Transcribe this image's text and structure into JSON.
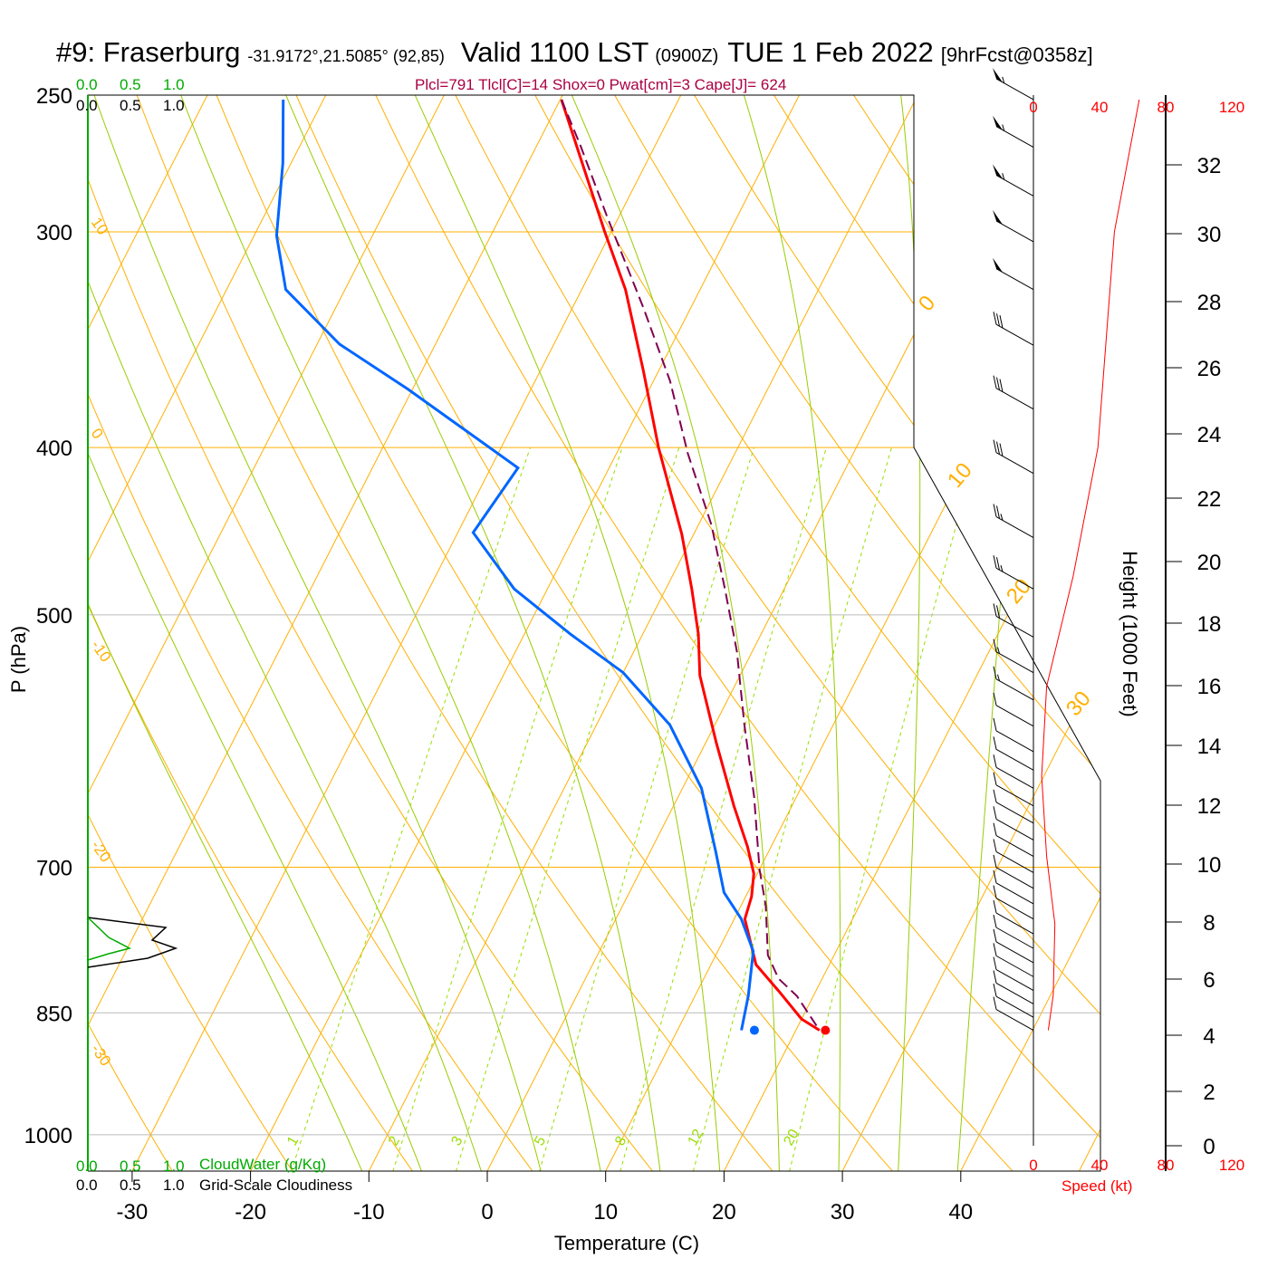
{
  "chart_data": {
    "type": "line",
    "subtype": "skew-t log-p sounding",
    "title": {
      "station": "#9: Fraserburg",
      "coords": "-31.9172°,21.5085° (92,85)",
      "valid": "Valid 1100 LST",
      "utc": "(0900Z)",
      "date": "TUE 1 Feb 2022",
      "forecast": "[9hrFcst@0358z]"
    },
    "indices": "Plcl=791 Tlcl[C]=14 Shox=0 Pwat[cm]=3 Cape[J]= 624",
    "xlabel": "Temperature (C)",
    "ylabel": "P (hPa)",
    "y2label": "Height (1000 Feet)",
    "speed_label": "Speed (kt)",
    "x_ticks": [
      -30,
      -20,
      -10,
      0,
      10,
      20,
      30,
      40
    ],
    "p_ticks": [
      250,
      300,
      400,
      500,
      700,
      850,
      1000
    ],
    "height_ticks": [
      0,
      2,
      4,
      6,
      8,
      10,
      12,
      14,
      16,
      18,
      20,
      22,
      24,
      26,
      28,
      30,
      32
    ],
    "speed_ticks": [
      0,
      40,
      80,
      120
    ],
    "cloud_scale": {
      "water_ticks": [
        "0.0",
        "0.5",
        "1.0"
      ],
      "water_label": "CloudWater (g/Kg)",
      "cover_ticks": [
        "0.0",
        "0.5",
        "1.0"
      ],
      "cover_label": "Grid-Scale Cloudiness"
    },
    "isotherm_labels": [
      0,
      10,
      20,
      30
    ],
    "dry_adiabat_labels": [
      10,
      0,
      -10,
      -20,
      -30
    ],
    "mixing_ratio_labels": [
      1,
      2,
      3,
      5,
      8,
      12,
      20
    ],
    "series": [
      {
        "name": "Temperature",
        "color": "#ff0000",
        "p": [
          251.5,
          299.7,
          324,
          361,
          400,
          449,
          483,
          513,
          542,
          593,
          645,
          681,
          706,
          728,
          750,
          797,
          826,
          857,
          870
        ],
        "t": [
          -39.9,
          -30.6,
          -26.3,
          -21.3,
          -16.7,
          -11.0,
          -7.8,
          -5.3,
          -3.4,
          0.9,
          5.1,
          8.0,
          9.7,
          10.5,
          10.9,
          13.8,
          16.9,
          20.0,
          22.0
        ]
      },
      {
        "name": "Dewpoint",
        "color": "#0066ff",
        "p": [
          251.5,
          273.7,
          301.5,
          324,
          348.5,
          370,
          411,
          448,
          483,
          513,
          540,
          579,
          630,
          685,
          724,
          750,
          783,
          831,
          870
        ],
        "t": [
          -63.4,
          -60.7,
          -58.1,
          -55.0,
          -48.1,
          -40.4,
          -27.7,
          -28.7,
          -22.8,
          -16.1,
          -10.0,
          -3.8,
          1.6,
          5.5,
          8.0,
          10.6,
          13.0,
          14.5,
          15.4
        ]
      },
      {
        "name": "Parcel",
        "color": "#800050",
        "dashed": true,
        "p": [
          251.5,
          267,
          294,
          332,
          366,
          403,
          443.5,
          483,
          525,
          579,
          637,
          702,
          737,
          787,
          812,
          831,
          870
        ],
        "t": [
          -39.9,
          -36.4,
          -31.0,
          -24.0,
          -18.6,
          -14.0,
          -8.9,
          -5.0,
          -1.3,
          2.5,
          6.4,
          10.0,
          12.1,
          14.4,
          16.3,
          18.6,
          22.0
        ]
      }
    ],
    "surface": {
      "p": 870,
      "t": 22.5,
      "td": 16.5
    },
    "wind_speed_profile": {
      "p": [
        251.5,
        300,
        400,
        475,
        550,
        620,
        690,
        755,
        830,
        870
      ],
      "kt": [
        64,
        49,
        39,
        24,
        8,
        5,
        8,
        13,
        12,
        9
      ]
    },
    "wind_barbs": {
      "p": [
        251.5,
        268,
        286,
        304,
        324,
        349,
        380,
        414,
        451,
        483,
        515,
        540,
        560,
        580,
        600,
        615,
        630,
        645,
        660,
        675,
        690,
        705,
        720,
        735,
        750,
        765,
        780,
        795,
        810,
        825,
        840,
        855,
        870
      ],
      "kt": [
        55,
        55,
        55,
        50,
        50,
        30,
        30,
        30,
        25,
        25,
        20,
        15,
        15,
        10,
        10,
        10,
        10,
        10,
        10,
        10,
        10,
        10,
        10,
        10,
        10,
        10,
        10,
        10,
        10,
        10,
        10,
        10,
        10
      ]
    },
    "colors": {
      "isotherm": "#ffb000",
      "dry_adiabat": "#ffb000",
      "moist_adiabat": "#99cc00",
      "mixing_ratio": "#99dd00",
      "cloud_water": "#00aa00",
      "speed": "#ff0000"
    }
  }
}
